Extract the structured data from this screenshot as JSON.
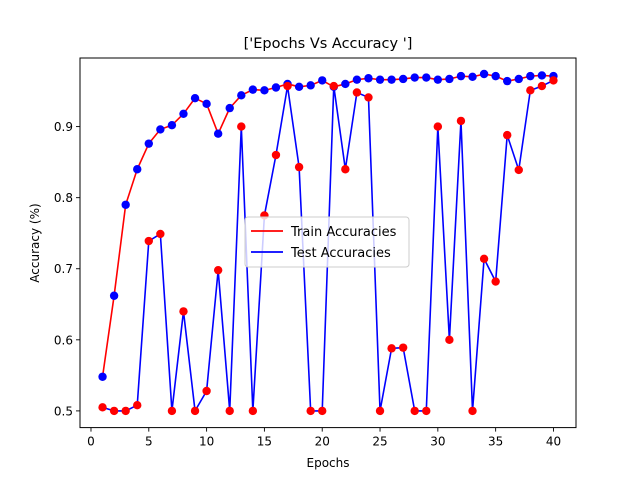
{
  "chart_data": {
    "type": "line",
    "title": "['Epochs Vs Accuracy ']",
    "xlabel": "Epochs",
    "ylabel": "Accuracy (%)",
    "xlim": [
      -0.95,
      41.95
    ],
    "ylim": [
      0.4765,
      0.9965
    ],
    "xticks": [
      0,
      5,
      10,
      15,
      20,
      25,
      30,
      35,
      40
    ],
    "yticks": [
      0.5,
      0.6,
      0.7,
      0.8,
      0.9
    ],
    "ytick_labels": [
      "0.5",
      "0.6",
      "0.7",
      "0.8",
      "0.9"
    ],
    "grid": false,
    "legend": "center",
    "x": [
      1,
      2,
      3,
      4,
      5,
      6,
      7,
      8,
      9,
      10,
      11,
      12,
      13,
      14,
      15,
      16,
      17,
      18,
      19,
      20,
      21,
      22,
      23,
      24,
      25,
      26,
      27,
      28,
      29,
      30,
      31,
      32,
      33,
      34,
      35,
      36,
      37,
      38,
      39,
      40
    ],
    "series": [
      {
        "name": "Train Accuracies",
        "color": "#ff0000",
        "marker_color": "#0000ff",
        "values": [
          0.548,
          0.662,
          0.79,
          0.84,
          0.876,
          0.896,
          0.902,
          0.918,
          0.94,
          0.932,
          0.89,
          0.926,
          0.944,
          0.952,
          0.951,
          0.955,
          0.96,
          0.956,
          0.958,
          0.965,
          0.956,
          0.96,
          0.966,
          0.968,
          0.966,
          0.966,
          0.967,
          0.969,
          0.969,
          0.966,
          0.967,
          0.971,
          0.97,
          0.974,
          0.971,
          0.964,
          0.967,
          0.971,
          0.972,
          0.971
        ]
      },
      {
        "name": "Test Accuracies",
        "color": "#0000ff",
        "marker_color": "#ff0000",
        "values": [
          0.505,
          0.5,
          0.5,
          0.508,
          0.739,
          0.749,
          0.5,
          0.64,
          0.5,
          0.528,
          0.698,
          0.5,
          0.9,
          0.5,
          0.775,
          0.86,
          0.957,
          0.843,
          0.5,
          0.5,
          0.957,
          0.84,
          0.948,
          0.941,
          0.5,
          0.588,
          0.589,
          0.5,
          0.5,
          0.9,
          0.6,
          0.908,
          0.5,
          0.714,
          0.682,
          0.888,
          0.839,
          0.951,
          0.957,
          0.965
        ]
      }
    ]
  }
}
